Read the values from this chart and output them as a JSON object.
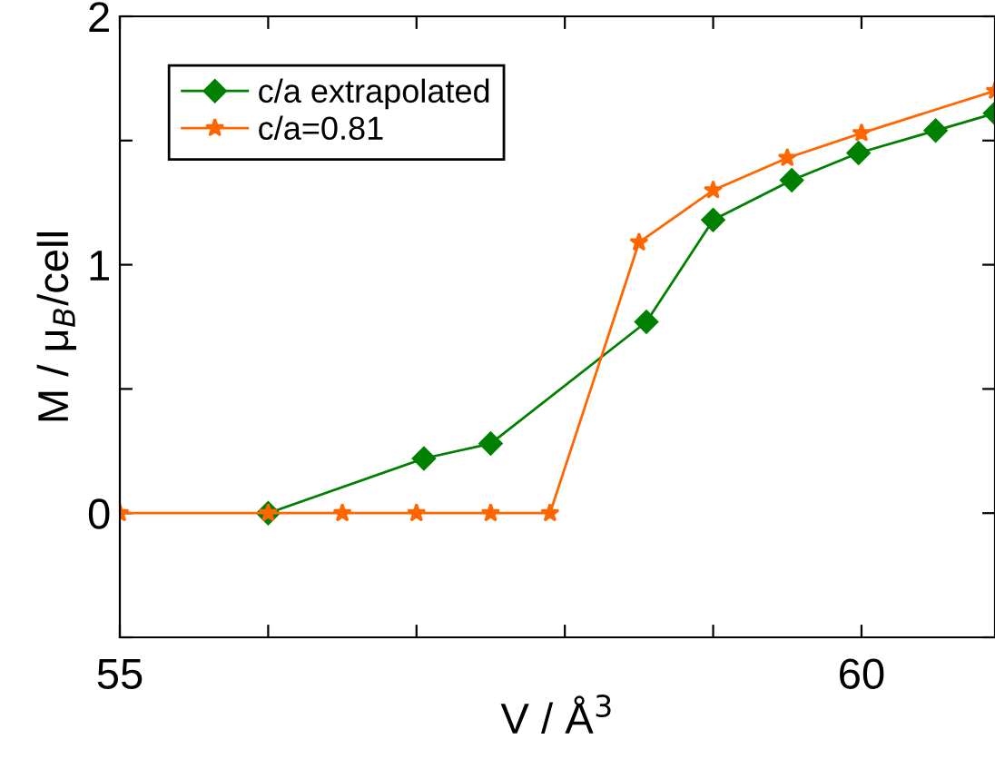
{
  "chart_data": {
    "type": "line",
    "xlabel": "V / Å$^{3}$",
    "ylabel": "M / μ$_{B}$/cell",
    "xlim": [
      55,
      60.9
    ],
    "ylim": [
      -0.5,
      2
    ],
    "xticks": [
      55,
      {
        "value": 56,
        "label": null
      },
      {
        "value": 57,
        "label": null
      },
      {
        "value": 58,
        "label": null
      },
      {
        "value": 59,
        "label": null
      },
      60
    ],
    "yticks": [
      {
        "value": -0.5,
        "label": null
      },
      0,
      {
        "value": 0.5,
        "label": null
      },
      1,
      {
        "value": 1.5,
        "label": null
      },
      2
    ],
    "grid": false,
    "legend": "top left",
    "line_style": "solid",
    "series": [
      {
        "name": "c/a extrapolated",
        "color": "#008000",
        "marker": "diamond",
        "x": [
          56.0,
          57.05,
          57.5,
          58.55,
          59.0,
          59.53,
          59.98,
          60.5,
          60.9
        ],
        "values": [
          0,
          0.22,
          0.28,
          0.77,
          1.18,
          1.34,
          1.45,
          1.54,
          1.61
        ]
      },
      {
        "name": "c/a=0.81",
        "color": "#ff6600",
        "marker": "star",
        "x": [
          55,
          56.0,
          56.5,
          57.0,
          57.5,
          57.9,
          58.5,
          59.0,
          59.5,
          60.0,
          60.9
        ],
        "values": [
          0,
          0,
          0,
          0,
          0,
          0,
          1.09,
          1.3,
          1.43,
          1.53,
          1.7
        ]
      }
    ]
  }
}
